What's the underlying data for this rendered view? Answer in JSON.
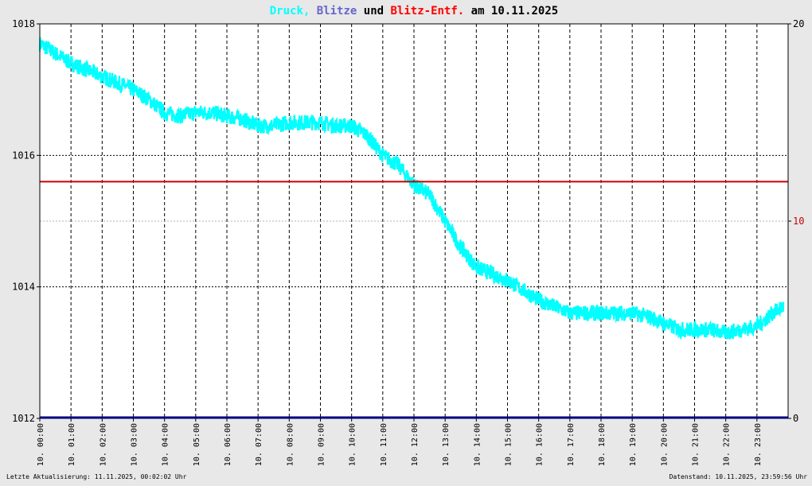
{
  "chart_data": {
    "type": "line",
    "title": {
      "parts": [
        {
          "text": "Druck,",
          "color": "#00ffff"
        },
        {
          "text": "Blitze",
          "color": "#6666cc"
        },
        {
          "text": "und",
          "color": "#000000"
        },
        {
          "text": "Blitz-Entf.",
          "color": "#ff0000"
        },
        {
          "text": "am 10.11.2025",
          "color": "#000000"
        }
      ]
    },
    "y_left": {
      "min": 1012,
      "max": 1018,
      "ticks": [
        1012,
        1014,
        1016,
        1018
      ],
      "labels": [
        "1012",
        "1014",
        "1016",
        "1018"
      ]
    },
    "y_right": {
      "min": 0,
      "max": 20,
      "ticks": [
        0,
        10,
        20
      ],
      "labels": [
        "0",
        "10",
        "20"
      ],
      "label_colors": [
        "#000000",
        "#cc0000",
        "#000000"
      ]
    },
    "x_labels": [
      "10. 00:00",
      "10. 01:00",
      "10. 02:00",
      "10. 03:00",
      "10. 04:00",
      "10. 05:00",
      "10. 06:00",
      "10. 07:00",
      "10. 08:00",
      "10. 09:00",
      "10. 10:00",
      "10. 11:00",
      "10. 12:00",
      "10. 13:00",
      "10. 14:00",
      "10. 15:00",
      "10. 16:00",
      "10. 17:00",
      "10. 18:00",
      "10. 19:00",
      "10. 20:00",
      "10. 21:00",
      "10. 22:00",
      "10. 23:00"
    ],
    "grid": true,
    "series": [
      {
        "name": "Druck",
        "axis": "left",
        "color": "#00ffff",
        "x_hours": [
          0,
          0.5,
          1,
          1.5,
          2,
          2.5,
          3,
          3.5,
          4,
          4.5,
          5,
          5.5,
          6,
          6.5,
          7,
          7.5,
          8,
          8.5,
          9,
          9.5,
          10,
          10.5,
          11,
          11.5,
          12,
          12.5,
          13,
          13.5,
          14,
          14.5,
          15,
          15.5,
          16,
          16.5,
          17,
          17.5,
          18,
          18.5,
          19,
          19.5,
          20,
          20.5,
          21,
          21.5,
          22,
          22.5,
          23,
          23.5,
          23.85
        ],
        "values": [
          1017.7,
          1017.55,
          1017.4,
          1017.3,
          1017.2,
          1017.1,
          1017.0,
          1016.85,
          1016.65,
          1016.6,
          1016.65,
          1016.65,
          1016.6,
          1016.55,
          1016.45,
          1016.45,
          1016.5,
          1016.5,
          1016.5,
          1016.45,
          1016.45,
          1016.3,
          1016.0,
          1015.85,
          1015.55,
          1015.4,
          1015.0,
          1014.6,
          1014.3,
          1014.2,
          1014.1,
          1013.95,
          1013.8,
          1013.7,
          1013.6,
          1013.6,
          1013.6,
          1013.6,
          1013.6,
          1013.55,
          1013.45,
          1013.35,
          1013.35,
          1013.35,
          1013.3,
          1013.35,
          1013.4,
          1013.6,
          1013.7
        ],
        "noise": 0.12
      },
      {
        "name": "Blitz-Entf.",
        "axis": "right",
        "color": "#cc0000",
        "x_hours": [
          0,
          24
        ],
        "values": [
          12,
          12
        ]
      },
      {
        "name": "Blitze",
        "axis": "right",
        "color": "#000080",
        "x_hours": [
          0,
          24
        ],
        "values": [
          0,
          0
        ]
      }
    ]
  },
  "footer": {
    "left": "Letzte Aktualisierung: 11.11.2025, 00:02:02 Uhr",
    "right": "Datenstand: 10.11.2025, 23:59:56 Uhr"
  }
}
